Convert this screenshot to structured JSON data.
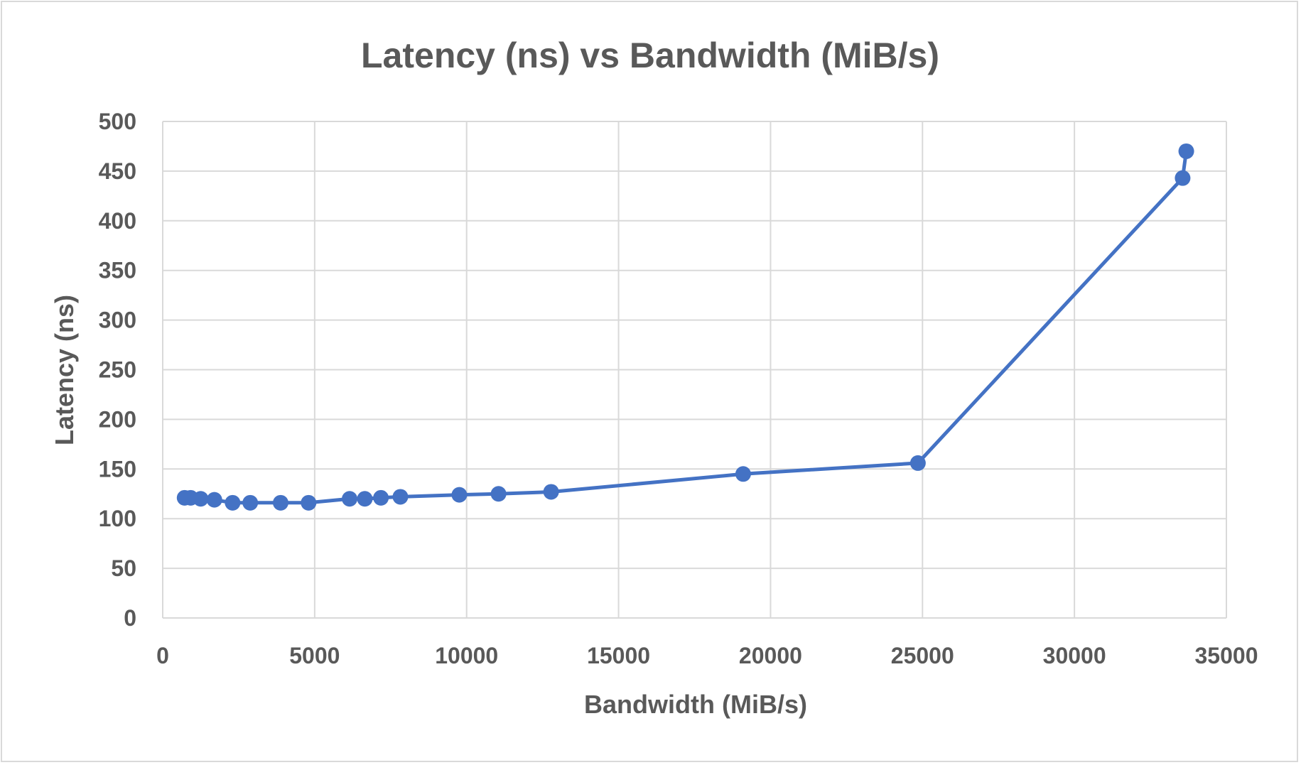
{
  "chart_data": {
    "type": "line",
    "title": "Latency (ns) vs Bandwidth (MiB/s)",
    "xlabel": "Bandwidth (MiB/s)",
    "ylabel": "Latency (ns)",
    "xlim": [
      0,
      35000
    ],
    "ylim": [
      0,
      500
    ],
    "xticks": [
      0,
      5000,
      10000,
      15000,
      20000,
      25000,
      30000,
      35000
    ],
    "yticks": [
      0,
      50,
      100,
      150,
      200,
      250,
      300,
      350,
      400,
      450,
      500
    ],
    "grid": true,
    "legend": "none",
    "series": [
      {
        "color": "#4472c4",
        "points": [
          [
            33680,
            470
          ],
          [
            33560,
            443
          ],
          [
            24850,
            156
          ],
          [
            19100,
            145
          ],
          [
            12780,
            127
          ],
          [
            11050,
            125
          ],
          [
            9760,
            124
          ],
          [
            7820,
            122
          ],
          [
            7180,
            121
          ],
          [
            6650,
            120
          ],
          [
            6150,
            120
          ],
          [
            4800,
            116
          ],
          [
            3880,
            116
          ],
          [
            2880,
            116
          ],
          [
            2300,
            116
          ],
          [
            1700,
            119
          ],
          [
            1250,
            120
          ],
          [
            920,
            121
          ],
          [
            720,
            121
          ]
        ]
      }
    ]
  }
}
